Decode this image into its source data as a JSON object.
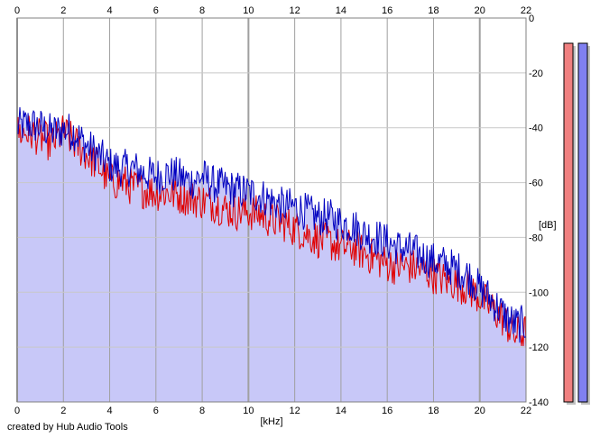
{
  "credit": "created by Hub Audio Tools",
  "colors": {
    "background": "#ffffff",
    "plot_background": "#ffffff",
    "fill": "#c8c8f8",
    "grid_major": "#a0a0a0",
    "grid_minor": "#c8c8c8",
    "channel_left": "#e00000",
    "channel_right": "#0000c0",
    "meter_left": "#f08080",
    "meter_right": "#8080f0"
  },
  "chart_data": {
    "type": "line",
    "xlabel": "[kHz]",
    "ylabel": "[dB]",
    "xlim": [
      0,
      22
    ],
    "ylim": [
      -140,
      0
    ],
    "x_ticks": [
      "0",
      "2",
      "4",
      "6",
      "8",
      "10",
      "12",
      "14",
      "16",
      "18",
      "20",
      "22"
    ],
    "y_ticks": [
      "0",
      "-20",
      "-40",
      "-60",
      "-80",
      "-100",
      "-120",
      "-140"
    ],
    "grid": true,
    "x": [
      0,
      0.5,
      1,
      1.5,
      2,
      2.5,
      3,
      3.5,
      4,
      4.5,
      5,
      5.5,
      6,
      6.5,
      7,
      7.5,
      8,
      8.5,
      9,
      9.5,
      10,
      10.5,
      11,
      11.5,
      12,
      12.5,
      13,
      13.5,
      14,
      14.5,
      15,
      15.5,
      16,
      16.5,
      17,
      17.5,
      18,
      18.5,
      19,
      19.5,
      20,
      20.5,
      21,
      21.5,
      22
    ],
    "series": [
      {
        "color": "#0000c0",
        "values": [
          -38,
          -37,
          -38,
          -40,
          -39,
          -40,
          -45,
          -48,
          -52,
          -53,
          -53,
          -55,
          -56,
          -55,
          -56,
          -58,
          -56,
          -59,
          -60,
          -61,
          -62,
          -63,
          -65,
          -67,
          -67,
          -69,
          -71,
          -71,
          -73,
          -74,
          -77,
          -78,
          -80,
          -82,
          -83,
          -85,
          -87,
          -88,
          -90,
          -92,
          -97,
          -101,
          -106,
          -110,
          -110
        ]
      },
      {
        "color": "#e00000",
        "values": [
          -40,
          -40,
          -42,
          -44,
          -40,
          -44,
          -48,
          -52,
          -58,
          -58,
          -60,
          -61,
          -62,
          -62,
          -63,
          -64,
          -65,
          -66,
          -68,
          -69,
          -69,
          -70,
          -72,
          -73,
          -75,
          -77,
          -79,
          -80,
          -82,
          -82,
          -84,
          -86,
          -88,
          -89,
          -89,
          -90,
          -92,
          -94,
          -95,
          -97,
          -100,
          -104,
          -108,
          -114,
          -113
        ]
      }
    ],
    "meters": [
      {
        "color": "#f08080",
        "level": 1.0
      },
      {
        "color": "#8080f0",
        "level": 1.0
      }
    ]
  }
}
